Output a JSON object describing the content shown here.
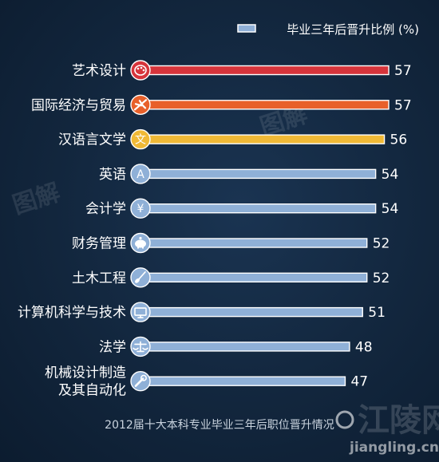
{
  "chart_data": {
    "type": "bar",
    "orientation": "horizontal",
    "title": "",
    "xlabel": "",
    "ylabel": "",
    "xlim": [
      0,
      57
    ],
    "grid": false,
    "legend": {
      "position": "top-right",
      "label": "毕业三年后晋升比例 (%)"
    },
    "categories": [
      {
        "label": [
          "艺术设计"
        ],
        "value": 57,
        "color": "#d6343b",
        "icon": "palette-icon"
      },
      {
        "label": [
          "国际经济与贸易"
        ],
        "value": 57,
        "color": "#e8602a",
        "icon": "airplane-icon"
      },
      {
        "label": [
          "汉语言文学"
        ],
        "value": 56,
        "color": "#f0b936",
        "icon": "wen-character-icon",
        "icon_text": "文"
      },
      {
        "label": [
          "英语"
        ],
        "value": 54,
        "color": "#8fb0d7",
        "icon": "letter-a-icon",
        "icon_text": "A"
      },
      {
        "label": [
          "会计学"
        ],
        "value": 54,
        "color": "#8fb0d7",
        "icon": "yen-icon",
        "icon_text": "¥"
      },
      {
        "label": [
          "财务管理"
        ],
        "value": 52,
        "color": "#8fb0d7",
        "icon": "piggy-bank-icon"
      },
      {
        "label": [
          "土木工程"
        ],
        "value": 52,
        "color": "#8fb0d7",
        "icon": "shovel-icon"
      },
      {
        "label": [
          "计算机科学与技术"
        ],
        "value": 51,
        "color": "#8fb0d7",
        "icon": "monitor-icon"
      },
      {
        "label": [
          "法学"
        ],
        "value": 48,
        "color": "#8fb0d7",
        "icon": "scales-icon"
      },
      {
        "label": [
          "机械设计制造",
          "及其自动化"
        ],
        "value": 47,
        "color": "#8fb0d7",
        "icon": "wrench-icon"
      }
    ]
  },
  "caption": "2012届十大本科专业毕业三年后职位晋升情况",
  "watermarks": {
    "site_name": "江陵网",
    "site_url": "jiangling.cn",
    "brand_mark": "图解"
  },
  "colors": {
    "background": "#12263d",
    "highlight_red": "#d6343b",
    "highlight_orange": "#e8602a",
    "highlight_yellow": "#f0b936",
    "default_bar": "#8fb0d7"
  }
}
